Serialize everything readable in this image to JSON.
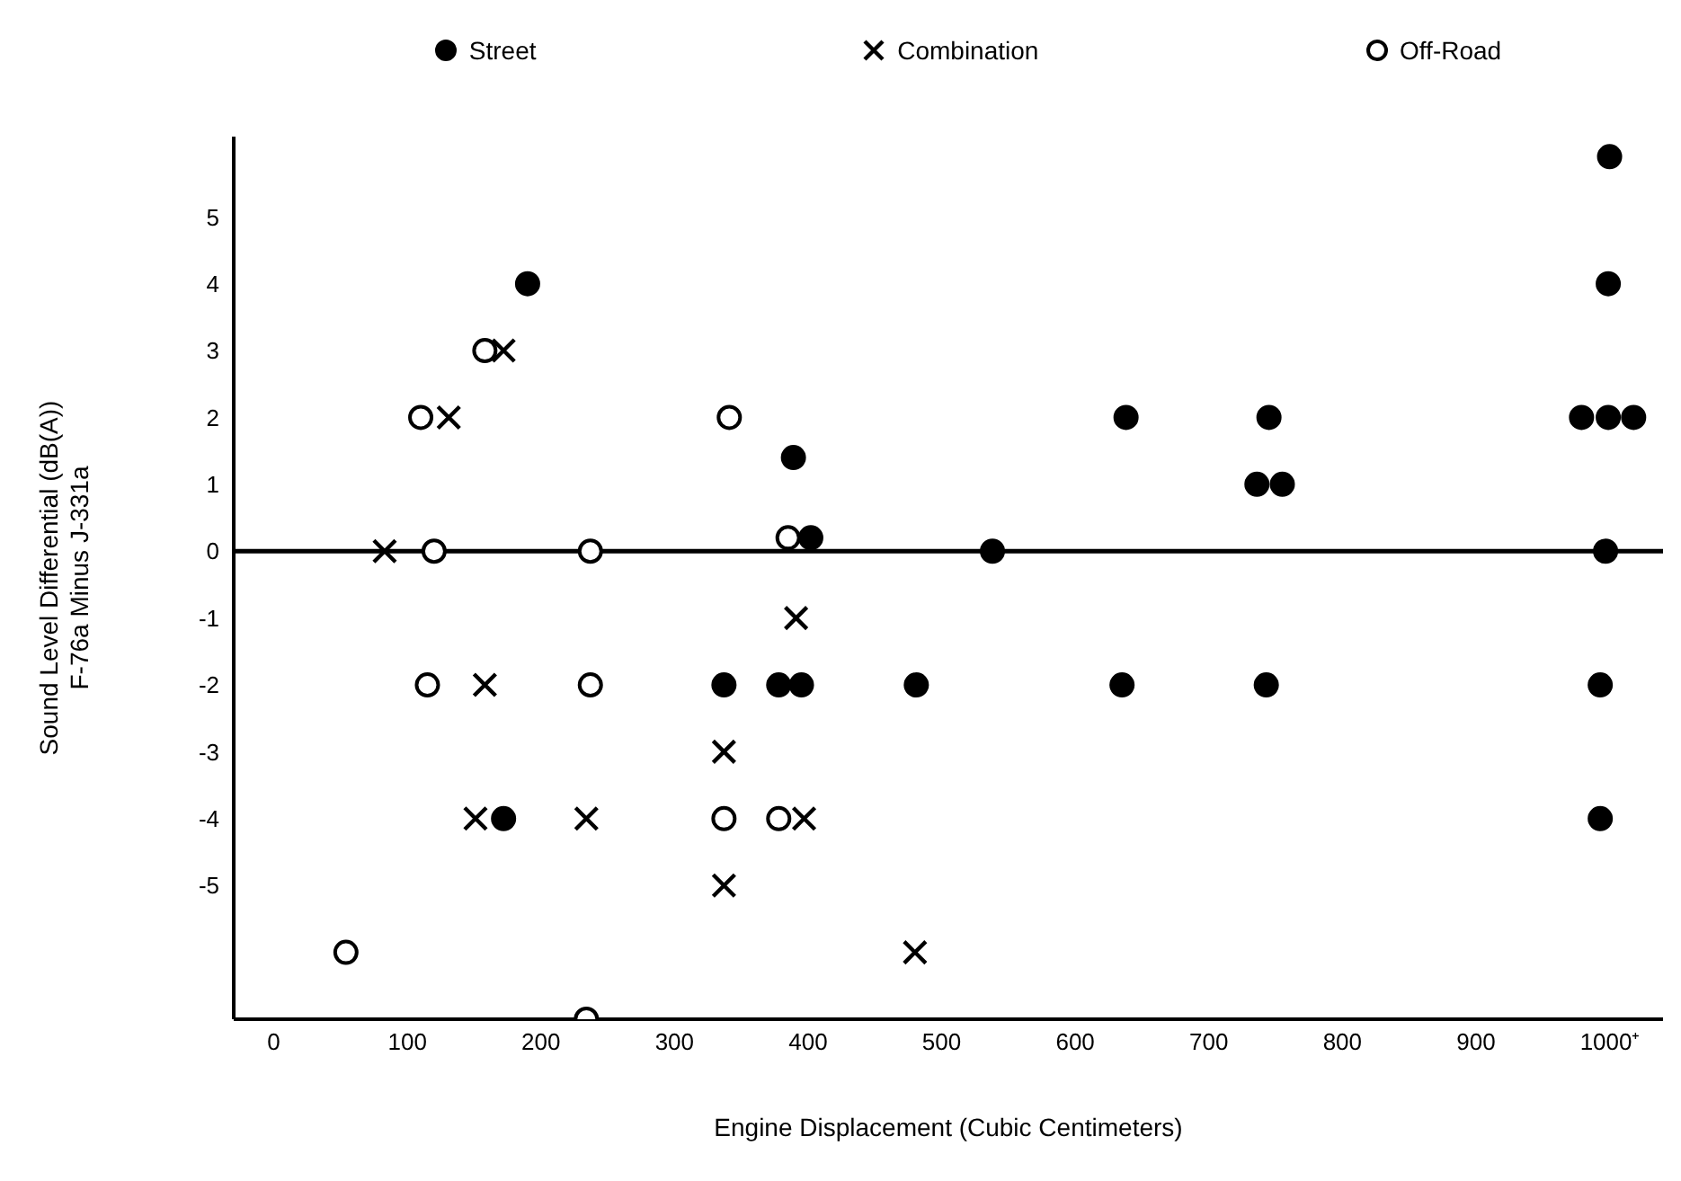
{
  "chart_data": {
    "type": "scatter",
    "xlabel": "Engine Displacement (Cubic Centimeters)",
    "ylabel": "Sound Level Differential (dB(A))\nF-76a Minus J-331a",
    "xlim": [
      -30,
      1040
    ],
    "xticks": [
      0,
      100,
      200,
      300,
      400,
      500,
      600,
      700,
      800,
      900,
      {
        "value": 1000,
        "label": "1000⁺"
      }
    ],
    "ylim": [
      -7,
      6.2
    ],
    "yticks": [
      -5,
      -4,
      -3,
      -2,
      -1,
      0,
      1,
      2,
      3,
      4,
      5
    ],
    "legend": "top",
    "grid": false,
    "ref_lines": [
      {
        "axis": "y",
        "value": 0,
        "color": "#000000"
      }
    ],
    "series": [
      {
        "name": "Street",
        "color": "#000000",
        "marker": "circle",
        "x": [
          190,
          389,
          402,
          538,
          997,
          638,
          745,
          736,
          755,
          979,
          999,
          1018,
          1000,
          999,
          337,
          378,
          395,
          481,
          635,
          743,
          993,
          993,
          172
        ],
        "values": [
          4,
          1.4,
          0.2,
          0,
          0,
          2,
          2,
          1,
          1,
          2,
          2,
          2,
          5.9,
          4,
          -2,
          -2,
          -2,
          -2,
          -2,
          -2,
          -2,
          -4,
          -4
        ]
      },
      {
        "name": "Combination",
        "color": "#000000",
        "marker": "cross",
        "x": [
          172,
          131,
          83,
          391,
          158,
          337,
          151,
          234,
          397,
          337,
          480
        ],
        "values": [
          3,
          2,
          0,
          -1,
          -2,
          -3,
          -4,
          -4,
          -4,
          -5,
          -6
        ]
      },
      {
        "name": "Off-Road",
        "color": "#000000",
        "marker": "circle",
        "x": [
          158,
          110,
          341,
          120,
          237,
          385,
          115,
          237,
          337,
          378,
          54,
          234
        ],
        "values": [
          3,
          2,
          2,
          0,
          0,
          0.2,
          -2,
          -2,
          -4,
          -4,
          -6,
          -7
        ]
      }
    ]
  }
}
